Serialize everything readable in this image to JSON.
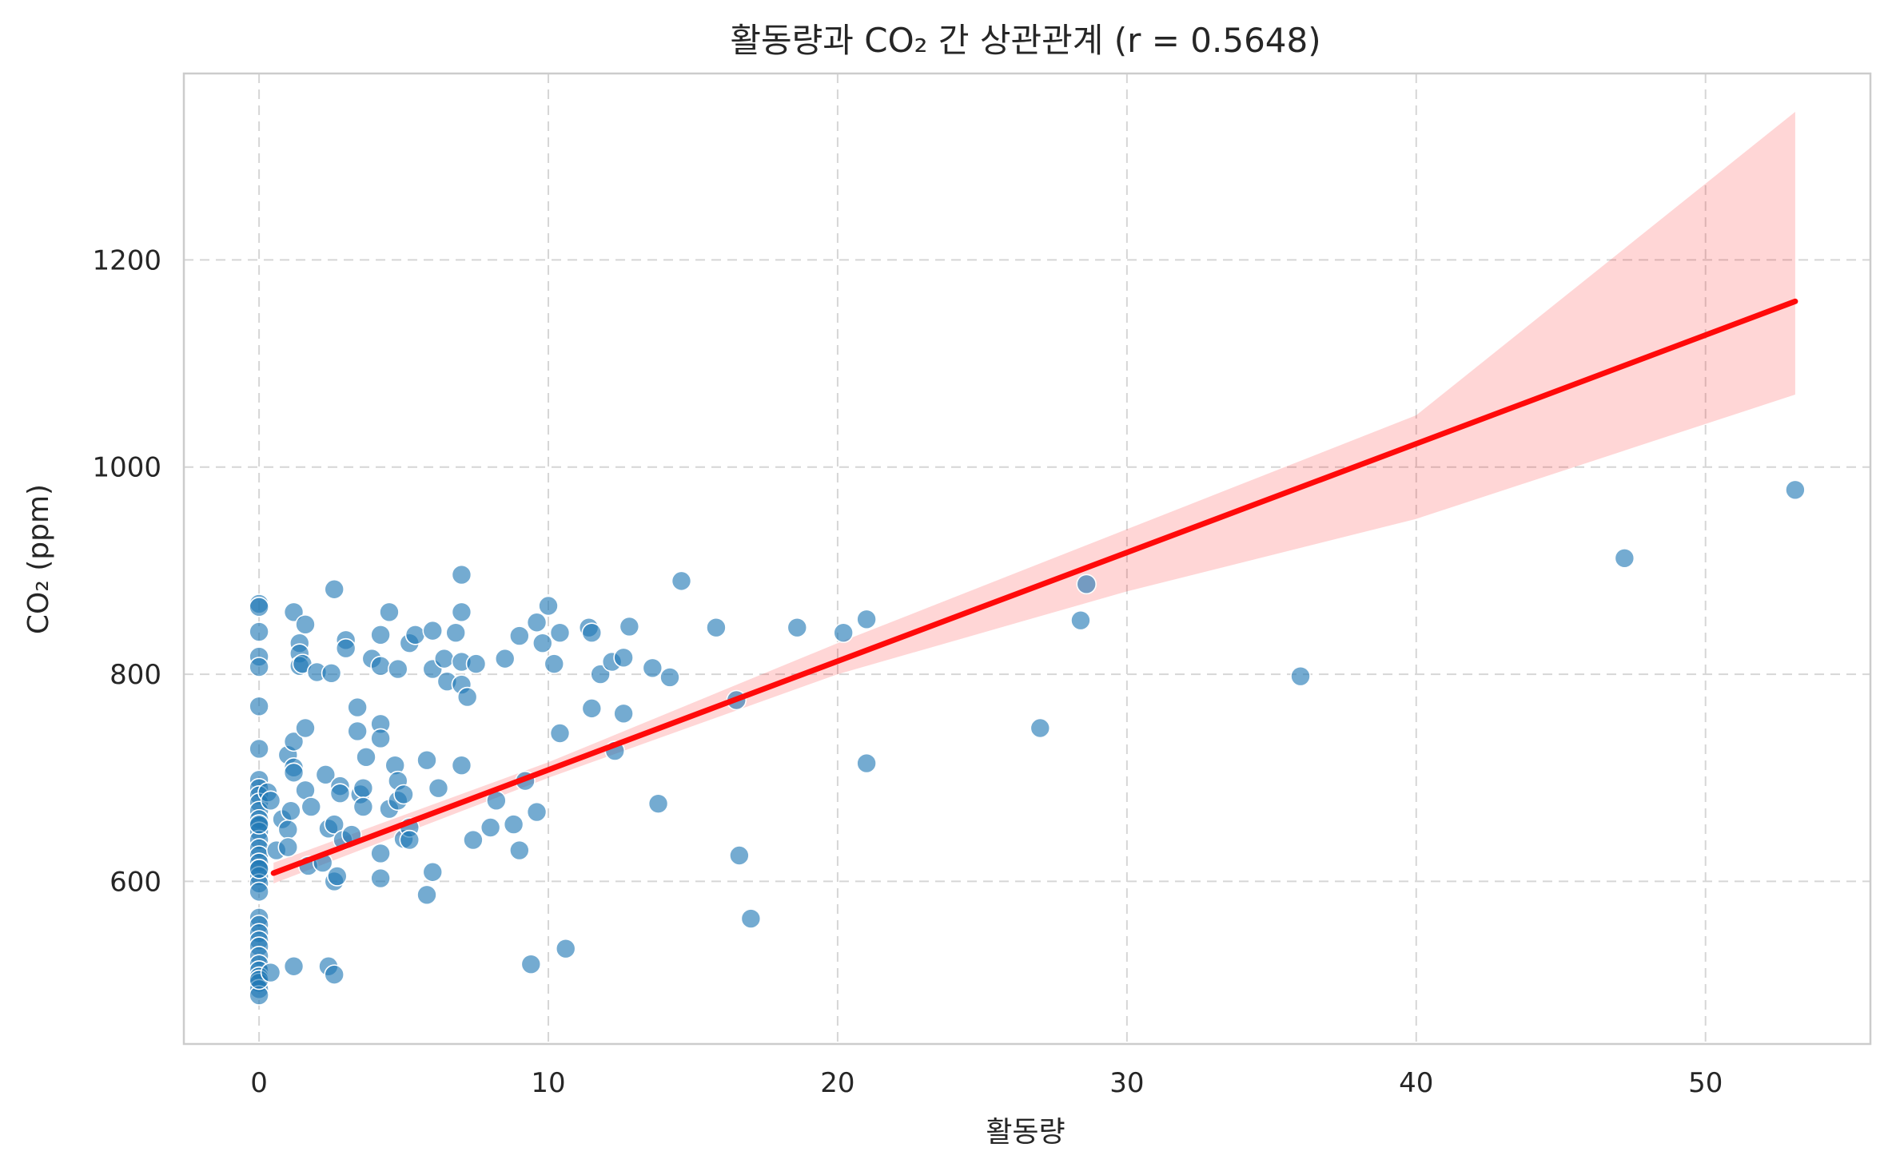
{
  "chart_data": {
    "type": "scatter",
    "title": "활동량과 CO₂ 간 상관관계 (r = 0.5648)",
    "xlabel": "활동량",
    "ylabel": "CO₂ (ppm)",
    "xlim": [
      -2.6,
      55.7
    ],
    "ylim": [
      443,
      1380
    ],
    "xticks": [
      0,
      10,
      20,
      30,
      40,
      50
    ],
    "yticks": [
      600,
      800,
      1000,
      1200
    ],
    "grid": true,
    "regression": {
      "x_start": 0.5,
      "x_end": 53.1,
      "y_start": 608,
      "y_end": 1160,
      "ci_lower": [
        [
          0.5,
          598
        ],
        [
          10,
          700
        ],
        [
          20,
          800
        ],
        [
          30,
          880
        ],
        [
          40,
          950
        ],
        [
          53.1,
          1070
        ]
      ],
      "ci_upper": [
        [
          0.5,
          618
        ],
        [
          10,
          715
        ],
        [
          20,
          830
        ],
        [
          30,
          940
        ],
        [
          40,
          1050
        ],
        [
          53.1,
          1343
        ]
      ]
    },
    "colors": {
      "points": "#1f77b4",
      "line": "#ff0a0a",
      "band": "#ffcccc"
    },
    "points": [
      [
        0,
        868
      ],
      [
        0,
        865
      ],
      [
        0,
        841
      ],
      [
        0,
        817
      ],
      [
        0,
        807
      ],
      [
        0,
        769
      ],
      [
        0,
        728
      ],
      [
        0,
        698
      ],
      [
        0,
        690
      ],
      [
        0,
        683
      ],
      [
        0,
        676
      ],
      [
        0,
        668
      ],
      [
        0,
        660
      ],
      [
        0,
        654
      ],
      [
        0,
        648
      ],
      [
        0,
        640
      ],
      [
        0,
        632
      ],
      [
        0,
        625
      ],
      [
        0,
        618
      ],
      [
        0,
        612
      ],
      [
        0,
        605
      ],
      [
        0,
        598
      ],
      [
        0,
        590
      ],
      [
        0,
        565
      ],
      [
        0,
        558
      ],
      [
        0,
        550
      ],
      [
        0,
        543
      ],
      [
        0,
        537
      ],
      [
        0,
        528
      ],
      [
        0,
        520
      ],
      [
        0,
        514
      ],
      [
        0,
        508
      ],
      [
        0,
        502
      ],
      [
        0,
        496
      ],
      [
        0,
        490
      ],
      [
        0,
        612
      ],
      [
        0,
        655
      ],
      [
        0,
        505
      ],
      [
        0.3,
        686
      ],
      [
        0.4,
        678
      ],
      [
        0.4,
        512
      ],
      [
        0.6,
        630
      ],
      [
        0.8,
        660
      ],
      [
        1.0,
        722
      ],
      [
        1.0,
        650
      ],
      [
        1.0,
        633
      ],
      [
        1.1,
        668
      ],
      [
        1.2,
        735
      ],
      [
        1.2,
        710
      ],
      [
        1.2,
        705
      ],
      [
        1.2,
        860
      ],
      [
        1.2,
        518
      ],
      [
        1.4,
        830
      ],
      [
        1.4,
        820
      ],
      [
        1.4,
        808
      ],
      [
        1.5,
        810
      ],
      [
        1.6,
        748
      ],
      [
        1.6,
        688
      ],
      [
        1.6,
        848
      ],
      [
        1.7,
        615
      ],
      [
        1.8,
        672
      ],
      [
        2.0,
        802
      ],
      [
        2.2,
        618
      ],
      [
        2.3,
        703
      ],
      [
        2.4,
        651
      ],
      [
        2.4,
        518
      ],
      [
        2.5,
        801
      ],
      [
        2.6,
        882
      ],
      [
        2.6,
        655
      ],
      [
        2.6,
        600
      ],
      [
        2.6,
        510
      ],
      [
        2.7,
        605
      ],
      [
        2.8,
        692
      ],
      [
        2.8,
        685
      ],
      [
        2.9,
        640
      ],
      [
        3.0,
        833
      ],
      [
        3.0,
        825
      ],
      [
        3.2,
        645
      ],
      [
        3.4,
        768
      ],
      [
        3.4,
        745
      ],
      [
        3.5,
        684
      ],
      [
        3.6,
        690
      ],
      [
        3.6,
        672
      ],
      [
        3.7,
        720
      ],
      [
        3.9,
        815
      ],
      [
        4.2,
        838
      ],
      [
        4.2,
        752
      ],
      [
        4.2,
        738
      ],
      [
        4.2,
        808
      ],
      [
        4.2,
        627
      ],
      [
        4.2,
        603
      ],
      [
        4.5,
        860
      ],
      [
        4.5,
        670
      ],
      [
        4.7,
        712
      ],
      [
        4.8,
        697
      ],
      [
        4.8,
        678
      ],
      [
        4.8,
        805
      ],
      [
        5.0,
        684
      ],
      [
        5.0,
        641
      ],
      [
        5.2,
        830
      ],
      [
        5.2,
        652
      ],
      [
        5.2,
        640
      ],
      [
        5.4,
        838
      ],
      [
        5.8,
        717
      ],
      [
        5.8,
        587
      ],
      [
        6.0,
        842
      ],
      [
        6.0,
        805
      ],
      [
        6.0,
        609
      ],
      [
        6.2,
        690
      ],
      [
        6.4,
        815
      ],
      [
        6.5,
        793
      ],
      [
        6.8,
        840
      ],
      [
        7.0,
        896
      ],
      [
        7.0,
        860
      ],
      [
        7.0,
        812
      ],
      [
        7.0,
        790
      ],
      [
        7.0,
        712
      ],
      [
        7.2,
        778
      ],
      [
        7.4,
        640
      ],
      [
        7.5,
        810
      ],
      [
        8.0,
        652
      ],
      [
        8.2,
        678
      ],
      [
        8.5,
        815
      ],
      [
        8.8,
        655
      ],
      [
        9.0,
        837
      ],
      [
        9.0,
        630
      ],
      [
        9.2,
        697
      ],
      [
        9.4,
        520
      ],
      [
        9.6,
        850
      ],
      [
        9.6,
        667
      ],
      [
        9.8,
        830
      ],
      [
        10.0,
        866
      ],
      [
        10.2,
        810
      ],
      [
        10.4,
        840
      ],
      [
        10.4,
        743
      ],
      [
        10.6,
        535
      ],
      [
        11.4,
        845
      ],
      [
        11.5,
        840
      ],
      [
        11.5,
        767
      ],
      [
        11.8,
        800
      ],
      [
        12.2,
        812
      ],
      [
        12.3,
        726
      ],
      [
        12.6,
        816
      ],
      [
        12.6,
        762
      ],
      [
        12.8,
        846
      ],
      [
        13.6,
        806
      ],
      [
        13.8,
        675
      ],
      [
        14.2,
        797
      ],
      [
        14.6,
        890
      ],
      [
        15.8,
        845
      ],
      [
        16.5,
        775
      ],
      [
        16.6,
        625
      ],
      [
        17.0,
        564
      ],
      [
        18.6,
        845
      ],
      [
        20.2,
        840
      ],
      [
        21.0,
        853
      ],
      [
        21.0,
        714
      ],
      [
        27.0,
        748
      ],
      [
        28.4,
        852
      ],
      [
        28.6,
        887
      ],
      [
        36.0,
        798
      ],
      [
        47.2,
        912
      ],
      [
        53.1,
        978
      ]
    ]
  }
}
